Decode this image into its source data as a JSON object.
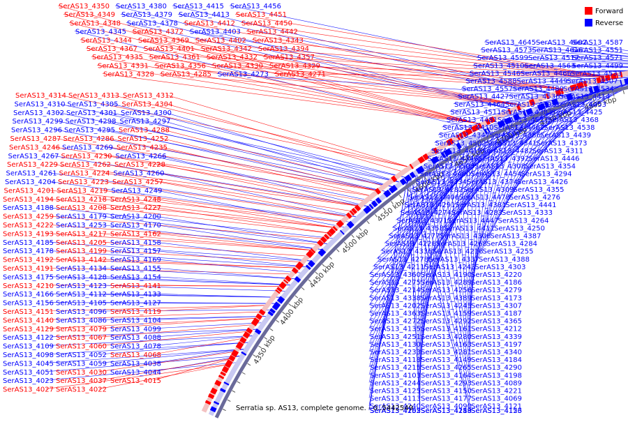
{
  "title": "Serratia sp. AS13, complete genome. - 0..5442549",
  "legend": [
    {
      "label": "Forward",
      "color": "#ff0000"
    },
    {
      "label": "Reverse",
      "color": "#0000ff"
    }
  ],
  "colors": {
    "forward": "#ff0000",
    "reverse": "#0000ff",
    "backbone": "#6a6a9a",
    "ticks": "#555555"
  },
  "kbp_labels": [
    {
      "text": "5000 kbp"
    },
    {
      "text": "4950 kbp"
    },
    {
      "text": "4900 kbp"
    },
    {
      "text": "4850 kbp"
    },
    {
      "text": "4800 kbp"
    },
    {
      "text": "4750 kbp"
    },
    {
      "text": "4700 kbp"
    },
    {
      "text": "4650 kbp"
    },
    {
      "text": "4600 kbp"
    },
    {
      "text": "4550 kbp"
    },
    {
      "text": "4500 kbp"
    },
    {
      "text": "4450 kbp"
    },
    {
      "text": "4400 kbp"
    },
    {
      "text": "4350 kbp"
    }
  ],
  "left_labels": [
    {
      "text": "SerAS13_4314",
      "strand": "f"
    },
    {
      "text": "SerAS13_4313",
      "strand": "f"
    },
    {
      "text": "SerAS13_4312",
      "strand": "f"
    },
    {
      "text": "SerAS13_4310",
      "strand": "r"
    },
    {
      "text": "SerAS13_4305",
      "strand": "r"
    },
    {
      "text": "SerAS13_4304",
      "strand": "f"
    },
    {
      "text": "SerAS13_4302",
      "strand": "r"
    },
    {
      "text": "SerAS13_4301",
      "strand": "r"
    },
    {
      "text": "SerAS13_4300",
      "strand": "r"
    },
    {
      "text": "SerAS13_4299",
      "strand": "r"
    },
    {
      "text": "SerAS13_4298",
      "strand": "r"
    },
    {
      "text": "SerAS13_4297",
      "strand": "r"
    },
    {
      "text": "SerAS13_4296",
      "strand": "r"
    },
    {
      "text": "SerAS13_4295",
      "strand": "r"
    },
    {
      "text": "SerAS13_4288",
      "strand": "f"
    },
    {
      "text": "SerAS13_4287",
      "strand": "f"
    },
    {
      "text": "SerAS13_4286",
      "strand": "f"
    },
    {
      "text": "SerAS13_4252",
      "strand": "f"
    },
    {
      "text": "SerAS13_4246",
      "strand": "f"
    },
    {
      "text": "SerAS13_4269",
      "strand": "r"
    },
    {
      "text": "SerAS13_4235",
      "strand": "f"
    },
    {
      "text": "SerAS13_4267",
      "strand": "r"
    },
    {
      "text": "SerAS13_4230",
      "strand": "f"
    },
    {
      "text": "SerAS13_4266",
      "strand": "r"
    },
    {
      "text": "SerAS13_4229",
      "strand": "f"
    },
    {
      "text": "SerAS13_4262",
      "strand": "f"
    },
    {
      "text": "SerAS13_4228",
      "strand": "f"
    },
    {
      "text": "SerAS13_4261",
      "strand": "r"
    },
    {
      "text": "SerAS13_4224",
      "strand": "f"
    },
    {
      "text": "SerAS13_4260",
      "strand": "r"
    },
    {
      "text": "SerAS13_4204",
      "strand": "r"
    },
    {
      "text": "SerAS13_4223",
      "strand": "f"
    },
    {
      "text": "SerAS13_4257",
      "strand": "f"
    },
    {
      "text": "SerAS13_4201",
      "strand": "f"
    },
    {
      "text": "SerAS13_4219",
      "strand": "f"
    },
    {
      "text": "SerAS13_4249",
      "strand": "r"
    },
    {
      "text": "SerAS13_4194",
      "strand": "f"
    },
    {
      "text": "SerAS13_4218",
      "strand": "f"
    },
    {
      "text": "SerAS13_4248",
      "strand": "f"
    },
    {
      "text": "SerAS13_4188",
      "strand": "r"
    },
    {
      "text": "SerAS13_4208",
      "strand": "f"
    },
    {
      "text": "SerAS13_4227",
      "strand": "f"
    },
    {
      "text": "SerAS13_4259",
      "strand": "f"
    },
    {
      "text": "SerAS13_4179",
      "strand": "r"
    },
    {
      "text": "SerAS13_4200",
      "strand": "r"
    },
    {
      "text": "SerAS13_4222",
      "strand": "f"
    },
    {
      "text": "SerAS13_4253",
      "strand": "r"
    },
    {
      "text": "SerAS13_4170",
      "strand": "r"
    },
    {
      "text": "SerAS13_4193",
      "strand": "f"
    },
    {
      "text": "SerAS13_4217",
      "strand": "f"
    },
    {
      "text": "SerAS13_4162",
      "strand": "f"
    },
    {
      "text": "SerAS13_4185",
      "strand": "r"
    },
    {
      "text": "SerAS13_4205",
      "strand": "f"
    },
    {
      "text": "SerAS13_4158",
      "strand": "r"
    },
    {
      "text": "SerAS13_4178",
      "strand": "r"
    },
    {
      "text": "SerAS13_4199",
      "strand": "f"
    },
    {
      "text": "SerAS13_4157",
      "strand": "r"
    },
    {
      "text": "SerAS13_4192",
      "strand": "f"
    },
    {
      "text": "SerAS13_4142",
      "strand": "f"
    },
    {
      "text": "SerAS13_4169",
      "strand": "r"
    },
    {
      "text": "SerAS13_4191",
      "strand": "f"
    },
    {
      "text": "SerAS13_4134",
      "strand": "r"
    },
    {
      "text": "SerAS13_4155",
      "strand": "r"
    },
    {
      "text": "SerAS13_4175",
      "strand": "r"
    },
    {
      "text": "SerAS13_4128",
      "strand": "r"
    },
    {
      "text": "SerAS13_4154",
      "strand": "r"
    },
    {
      "text": "SerAS13_4210",
      "strand": "f"
    },
    {
      "text": "SerAS13_4123",
      "strand": "r"
    },
    {
      "text": "SerAS13_4141",
      "strand": "f"
    },
    {
      "text": "SerAS13_4166",
      "strand": "r"
    },
    {
      "text": "SerAS13_4112",
      "strand": "r"
    },
    {
      "text": "SerAS13_4133",
      "strand": "r"
    },
    {
      "text": "SerAS13_4156",
      "strand": "r"
    },
    {
      "text": "SerAS13_4105",
      "strand": "r"
    },
    {
      "text": "SerAS13_4127",
      "strand": "r"
    },
    {
      "text": "SerAS13_4151",
      "strand": "f"
    },
    {
      "text": "SerAS13_4096",
      "strand": "r"
    },
    {
      "text": "SerAS13_4119",
      "strand": "f"
    },
    {
      "text": "SerAS13_4140",
      "strand": "f"
    },
    {
      "text": "SerAS13_4086",
      "strand": "r"
    },
    {
      "text": "SerAS13_4104",
      "strand": "r"
    },
    {
      "text": "SerAS13_4129",
      "strand": "f"
    },
    {
      "text": "SerAS13_4079",
      "strand": "f"
    },
    {
      "text": "SerAS13_4099",
      "strand": "r"
    },
    {
      "text": "SerAS13_4122",
      "strand": "r"
    },
    {
      "text": "SerAS13_4067",
      "strand": "f"
    },
    {
      "text": "SerAS13_4088",
      "strand": "r"
    },
    {
      "text": "SerAS13_4109",
      "strand": "r"
    },
    {
      "text": "SerAS13_4060",
      "strand": "f"
    },
    {
      "text": "SerAS13_4078",
      "strand": "r"
    },
    {
      "text": "SerAS13_4098",
      "strand": "r"
    },
    {
      "text": "SerAS13_4052",
      "strand": "r"
    },
    {
      "text": "SerAS13_4068",
      "strand": "f"
    },
    {
      "text": "SerAS13_4045",
      "strand": "r"
    },
    {
      "text": "SerAS13_4059",
      "strand": "r"
    },
    {
      "text": "SerAS13_4038",
      "strand": "r"
    },
    {
      "text": "SerAS13_4051",
      "strand": "r"
    },
    {
      "text": "SerAS13_4030",
      "strand": "f"
    },
    {
      "text": "SerAS13_4044",
      "strand": "r"
    },
    {
      "text": "SerAS13_4023",
      "strand": "r"
    },
    {
      "text": "SerAS13_4037",
      "strand": "f"
    },
    {
      "text": "SerAS13_4015",
      "strand": "f"
    },
    {
      "text": "SerAS13_4027",
      "strand": "f"
    },
    {
      "text": "SerAS13_4022",
      "strand": "f"
    }
  ],
  "top_labels": [
    {
      "text": "SerAS13_4350",
      "strand": "f"
    },
    {
      "text": "SerAS13_4380",
      "strand": "r"
    },
    {
      "text": "SerAS13_4415",
      "strand": "r"
    },
    {
      "text": "SerAS13_4456",
      "strand": "r"
    },
    {
      "text": "SerAS13_4349",
      "strand": "f"
    },
    {
      "text": "SerAS13_4379",
      "strand": "r"
    },
    {
      "text": "SerAS13_4413",
      "strand": "r"
    },
    {
      "text": "SerAS13_4451",
      "strand": "f"
    },
    {
      "text": "SerAS13_4348",
      "strand": "f"
    },
    {
      "text": "SerAS13_4378",
      "strand": "r"
    },
    {
      "text": "SerAS13_4412",
      "strand": "f"
    },
    {
      "text": "SerAS13_4450",
      "strand": "f"
    },
    {
      "text": "SerAS13_4345",
      "strand": "r"
    },
    {
      "text": "SerAS13_4372",
      "strand": "f"
    },
    {
      "text": "SerAS13_4403",
      "strand": "r"
    },
    {
      "text": "SerAS13_4442",
      "strand": "f"
    },
    {
      "text": "SerAS13_4344",
      "strand": "f"
    },
    {
      "text": "SerAS13_4369",
      "strand": "f"
    },
    {
      "text": "SerAS13_4402",
      "strand": "f"
    },
    {
      "text": "SerAS13_4343",
      "strand": "f"
    },
    {
      "text": "SerAS13_4367",
      "strand": "f"
    },
    {
      "text": "SerAS13_4401",
      "strand": "f"
    },
    {
      "text": "SerAS13_4342",
      "strand": "f"
    },
    {
      "text": "SerAS13_4394",
      "strand": "f"
    },
    {
      "text": "SerAS13_4335",
      "strand": "f"
    },
    {
      "text": "SerAS13_4361",
      "strand": "f"
    },
    {
      "text": "SerAS13_4332",
      "strand": "f"
    },
    {
      "text": "SerAS13_4357",
      "strand": "f"
    },
    {
      "text": "SerAS13_4331",
      "strand": "f"
    },
    {
      "text": "SerAS13_4356",
      "strand": "f"
    },
    {
      "text": "SerAS13_4330",
      "strand": "f"
    },
    {
      "text": "SerAS13_4329",
      "strand": "f"
    },
    {
      "text": "SerAS13_4328",
      "strand": "f"
    },
    {
      "text": "SerAS13_4285",
      "strand": "f"
    },
    {
      "text": "SerAS13_4273",
      "strand": "r"
    },
    {
      "text": "SerAS13_4271",
      "strand": "f"
    }
  ],
  "right_labels": [
    {
      "text": "SerAS13_4645",
      "strand": "r"
    },
    {
      "text": "SerAS13_4602",
      "strand": "r"
    },
    {
      "text": "SerAS13_4587",
      "strand": "r"
    },
    {
      "text": "SerAS13_4573",
      "strand": "r"
    },
    {
      "text": "SerAS13_4616",
      "strand": "r"
    },
    {
      "text": "SerAS13_4551",
      "strand": "r"
    },
    {
      "text": "SerAS13_4599",
      "strand": "r"
    },
    {
      "text": "SerAS13_4517",
      "strand": "r"
    },
    {
      "text": "SerAS13_4571",
      "strand": "r"
    },
    {
      "text": "SerAS13_4510",
      "strand": "r"
    },
    {
      "text": "SerAS13_4563",
      "strand": "r"
    },
    {
      "text": "SerAS13_4499",
      "strand": "r"
    },
    {
      "text": "SerAS13_4546",
      "strand": "r"
    },
    {
      "text": "SerAS13_4466",
      "strand": "r"
    },
    {
      "text": "SerAS13_4533",
      "strand": "r"
    },
    {
      "text": "SerAS13_4588",
      "strand": "r"
    },
    {
      "text": "SerAS13_4449",
      "strand": "r"
    },
    {
      "text": "SerAS13_4507",
      "strand": "r"
    },
    {
      "text": "SerAS13_4557",
      "strand": "r"
    },
    {
      "text": "SerAS13_4480",
      "strand": "r"
    },
    {
      "text": "SerAS13_4534",
      "strand": "r"
    },
    {
      "text": "SerAS13_4427",
      "strand": "r"
    },
    {
      "text": "SerAS13_4536",
      "strand": "r"
    },
    {
      "text": "SerAS13_4414",
      "strand": "r"
    },
    {
      "text": "SerAS13_4464",
      "strand": "r"
    },
    {
      "text": "SerAS13_4399",
      "strand": "r"
    },
    {
      "text": "SerAS13_4453",
      "strand": "r"
    },
    {
      "text": "SerAS13_4511",
      "strand": "r"
    },
    {
      "text": "SerAS13_4383",
      "strand": "r"
    },
    {
      "text": "SerAS13_4425",
      "strand": "r"
    },
    {
      "text": "SerAS13_4481",
      "strand": "r"
    },
    {
      "text": "SerAS13_4537",
      "strand": "r"
    },
    {
      "text": "SerAS13_4368",
      "strand": "r"
    },
    {
      "text": "SerAS13_4410",
      "strand": "r"
    },
    {
      "text": "SerAS13_4462",
      "strand": "r"
    },
    {
      "text": "SerAS13_4538",
      "strand": "r"
    },
    {
      "text": "SerAS13_4347",
      "strand": "r"
    },
    {
      "text": "SerAS13_4386",
      "strand": "r"
    },
    {
      "text": "SerAS13_4439",
      "strand": "r"
    },
    {
      "text": "SerAS13_4502",
      "strand": "r"
    },
    {
      "text": "SerAS13_4341",
      "strand": "r"
    },
    {
      "text": "SerAS13_4373",
      "strand": "r"
    },
    {
      "text": "SerAS13_4419",
      "strand": "r"
    },
    {
      "text": "SerAS13_4482",
      "strand": "r"
    },
    {
      "text": "SerAS13_4311",
      "strand": "r"
    },
    {
      "text": "SerAS13_4346",
      "strand": "r"
    },
    {
      "text": "SerAS13_4392",
      "strand": "r"
    },
    {
      "text": "SerAS13_4446",
      "strand": "r"
    },
    {
      "text": "SerAS13_4508",
      "strand": "r"
    },
    {
      "text": "SerAS13_4308",
      "strand": "r"
    },
    {
      "text": "SerAS13_4354",
      "strand": "r"
    },
    {
      "text": "SerAS13_4400",
      "strand": "r"
    },
    {
      "text": "SerAS13_4454",
      "strand": "r"
    },
    {
      "text": "SerAS13_4294",
      "strand": "r"
    },
    {
      "text": "SerAS13_4334",
      "strand": "r"
    },
    {
      "text": "SerAS13_4374",
      "strand": "r"
    },
    {
      "text": "SerAS13_4426",
      "strand": "r"
    },
    {
      "text": "SerAS13_4282",
      "strand": "r"
    },
    {
      "text": "SerAS13_4309",
      "strand": "r"
    },
    {
      "text": "SerAS13_4355",
      "strand": "r"
    },
    {
      "text": "SerAS13_4406",
      "strand": "r"
    },
    {
      "text": "SerAS13_4478",
      "strand": "r"
    },
    {
      "text": "SerAS13_4276",
      "strand": "r"
    },
    {
      "text": "SerAS13_4291",
      "strand": "r"
    },
    {
      "text": "SerAS13_4381",
      "strand": "r"
    },
    {
      "text": "SerAS13_4441",
      "strand": "r"
    },
    {
      "text": "SerAS13_4274",
      "strand": "r"
    },
    {
      "text": "SerAS13_4283",
      "strand": "r"
    },
    {
      "text": "SerAS13_4333",
      "strand": "r"
    },
    {
      "text": "SerAS13_4371",
      "strand": "r"
    },
    {
      "text": "SerAS13_4447",
      "strand": "r"
    },
    {
      "text": "SerAS13_4264",
      "strand": "r"
    },
    {
      "text": "SerAS13_4358",
      "strand": "r"
    },
    {
      "text": "SerAS13_4411",
      "strand": "r"
    },
    {
      "text": "SerAS13_4250",
      "strand": "r"
    },
    {
      "text": "SerAS13_4277",
      "strand": "r"
    },
    {
      "text": "SerAS13_4306",
      "strand": "r"
    },
    {
      "text": "SerAS13_4387",
      "strand": "r"
    },
    {
      "text": "SerAS13_4226",
      "strand": "r"
    },
    {
      "text": "SerAS13_4268",
      "strand": "r"
    },
    {
      "text": "SerAS13_4284",
      "strand": "r"
    },
    {
      "text": "SerAS13_4336",
      "strand": "r"
    },
    {
      "text": "SerAS13_4216",
      "strand": "r"
    },
    {
      "text": "SerAS13_4255",
      "strand": "r"
    },
    {
      "text": "SerAS13_4278",
      "strand": "r"
    },
    {
      "text": "SerAS13_4337",
      "strand": "r"
    },
    {
      "text": "SerAS13_4388",
      "strand": "r"
    },
    {
      "text": "SerAS13_4211",
      "strand": "r"
    },
    {
      "text": "SerAS13_4243",
      "strand": "r"
    },
    {
      "text": "SerAS13_4303",
      "strand": "r"
    },
    {
      "text": "SerAS13_4360",
      "strand": "r"
    },
    {
      "text": "SerAS13_4190",
      "strand": "r"
    },
    {
      "text": "SerAS13_4220",
      "strand": "r"
    },
    {
      "text": "SerAS13_4275",
      "strand": "r"
    },
    {
      "text": "SerAS13_4289",
      "strand": "r"
    },
    {
      "text": "SerAS13_4186",
      "strand": "r"
    },
    {
      "text": "SerAS13_4214",
      "strand": "r"
    },
    {
      "text": "SerAS13_4256",
      "strand": "r"
    },
    {
      "text": "SerAS13_4279",
      "strand": "r"
    },
    {
      "text": "SerAS13_4338",
      "strand": "r"
    },
    {
      "text": "SerAS13_4389",
      "strand": "r"
    },
    {
      "text": "SerAS13_4173",
      "strand": "r"
    },
    {
      "text": "SerAS13_4202",
      "strand": "r"
    },
    {
      "text": "SerAS13_4245",
      "strand": "r"
    },
    {
      "text": "SerAS13_4307",
      "strand": "r"
    },
    {
      "text": "SerAS13_4363",
      "strand": "r"
    },
    {
      "text": "SerAS13_4159",
      "strand": "r"
    },
    {
      "text": "SerAS13_4187",
      "strand": "r"
    },
    {
      "text": "SerAS13_4272",
      "strand": "r"
    },
    {
      "text": "SerAS13_4292",
      "strand": "r"
    },
    {
      "text": "SerAS13_4365",
      "strand": "r"
    },
    {
      "text": "SerAS13_4135",
      "strand": "r"
    },
    {
      "text": "SerAS13_4161",
      "strand": "r"
    },
    {
      "text": "SerAS13_4212",
      "strand": "r"
    },
    {
      "text": "SerAS13_4251",
      "strand": "r"
    },
    {
      "text": "SerAS13_4280",
      "strand": "r"
    },
    {
      "text": "SerAS13_4339",
      "strand": "r"
    },
    {
      "text": "SerAS13_4130",
      "strand": "r"
    },
    {
      "text": "SerAS13_4163",
      "strand": "r"
    },
    {
      "text": "SerAS13_4197",
      "strand": "r"
    },
    {
      "text": "SerAS13_4233",
      "strand": "r"
    },
    {
      "text": "SerAS13_4281",
      "strand": "r"
    },
    {
      "text": "SerAS13_4340",
      "strand": "r"
    },
    {
      "text": "SerAS13_4118",
      "strand": "r"
    },
    {
      "text": "SerAS13_4149",
      "strand": "r"
    },
    {
      "text": "SerAS13_4184",
      "strand": "r"
    },
    {
      "text": "SerAS13_4215",
      "strand": "r"
    },
    {
      "text": "SerAS13_4265",
      "strand": "r"
    },
    {
      "text": "SerAS13_4290",
      "strand": "r"
    },
    {
      "text": "SerAS13_4103",
      "strand": "r"
    },
    {
      "text": "SerAS13_4164",
      "strand": "r"
    },
    {
      "text": "SerAS13_4198",
      "strand": "r"
    },
    {
      "text": "SerAS13_4244",
      "strand": "r"
    },
    {
      "text": "SerAS13_4293",
      "strand": "r"
    },
    {
      "text": "SerAS13_4089",
      "strand": "r"
    },
    {
      "text": "SerAS13_4125",
      "strand": "r"
    },
    {
      "text": "SerAS13_4150",
      "strand": "r"
    },
    {
      "text": "SerAS13_4221",
      "strand": "r"
    },
    {
      "text": "SerAS13_4113",
      "strand": "r"
    },
    {
      "text": "SerAS13_4177",
      "strand": "r"
    },
    {
      "text": "SerAS13_4069",
      "strand": "r"
    },
    {
      "text": "SerAS13_4240",
      "strand": "r"
    },
    {
      "text": "SerAS13_4090",
      "strand": "r"
    },
    {
      "text": "SerAS13_4121",
      "strand": "r"
    },
    {
      "text": "SerAS13_4152",
      "strand": "r"
    },
    {
      "text": "SerAS13_4189",
      "strand": "r"
    },
    {
      "text": "SerAS13_4153",
      "strand": "r"
    },
    {
      "text": "SerAS13_4203",
      "strand": "r"
    },
    {
      "text": "SerAS13_4258",
      "strand": "r"
    },
    {
      "text": "SerAS13_4126",
      "strand": "r"
    },
    {
      "text": "SerAS13_4165",
      "strand": "r"
    },
    {
      "text": "SerAS13_4213",
      "strand": "r"
    }
  ]
}
